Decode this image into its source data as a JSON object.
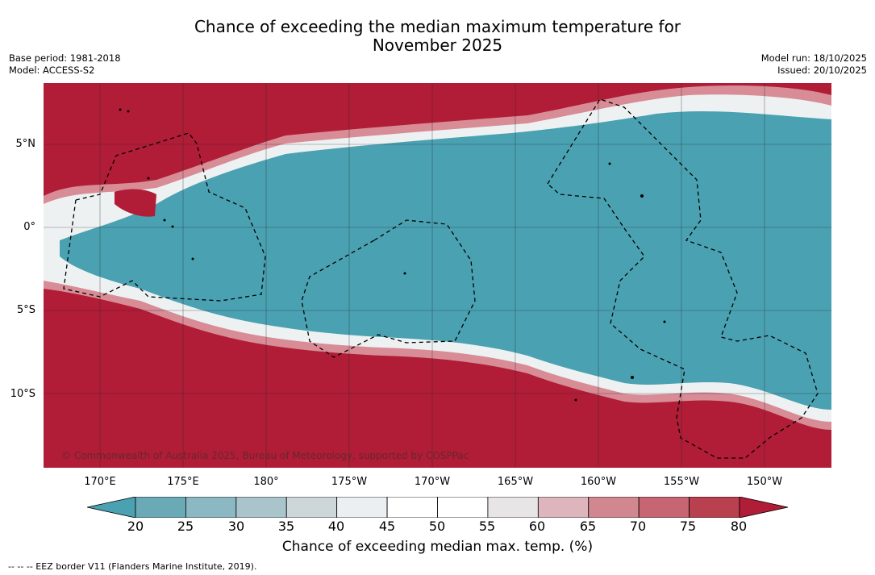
{
  "title": {
    "line1": "Chance of exceeding the median maximum temperature for",
    "line2": "November 2025"
  },
  "meta_left": {
    "base_period": "Base period: 1981-2018",
    "model": "Model: ACCESS-S2"
  },
  "meta_right": {
    "model_run": "Model run: 18/10/2025",
    "issued": "Issued: 20/10/2025"
  },
  "map": {
    "lat_labels": [
      "5°N",
      "0°",
      "5°S",
      "10°S"
    ],
    "lon_labels": [
      "170°E",
      "175°E",
      "180°",
      "175°W",
      "170°W",
      "165°W",
      "160°W",
      "155°W",
      "150°W"
    ],
    "copyright": "© Commonwealth of Australia 2025, Bureau of Meteorology, supported by COSPPac",
    "colors": {
      "below": "#4aa1b2",
      "above": "#b11c37",
      "neutral": "#ffffff",
      "grid": "#2a2a2a"
    }
  },
  "colorbar": {
    "ticks": [
      "20",
      "25",
      "30",
      "35",
      "40",
      "45",
      "50",
      "55",
      "60",
      "65",
      "70",
      "75",
      "80"
    ],
    "colors": [
      "#6aa9b6",
      "#8bb8c3",
      "#a9c4ca",
      "#cdd6d9",
      "#ebeff1",
      "#ffffff",
      "#ffffff",
      "#e8e5e6",
      "#ddb6bd",
      "#d1878f",
      "#c76572",
      "#b9404f"
    ],
    "low_color": "#4aa1b2",
    "high_color": "#b11c37",
    "label": "Chance of exceeding median max. temp. (%)"
  },
  "footer": {
    "legend_text": "--  --  -- EEZ border V11 (Flanders Marine Institute, 2019)."
  }
}
